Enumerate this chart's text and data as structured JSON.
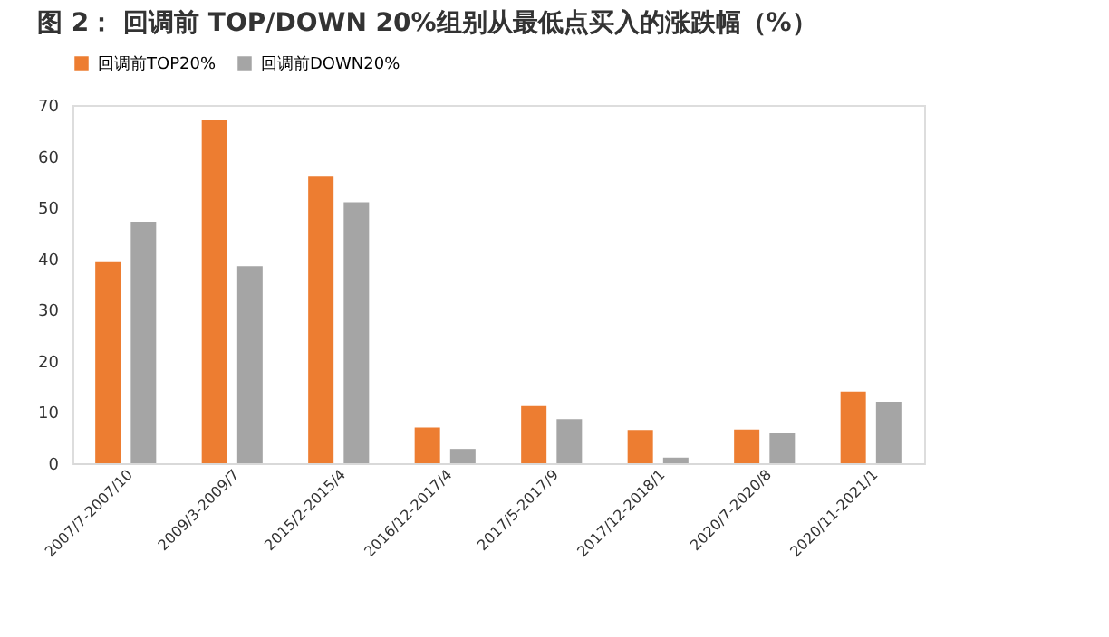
{
  "chart_data": {
    "type": "bar",
    "title": "图 2： 回调前 TOP/DOWN 20%组别从最低点买入的涨跌幅（%）",
    "categories": [
      "2007/7-2007/10",
      "2009/3-2009/7",
      "2015/2-2015/4",
      "2016/12-2017/4",
      "2017/5-2017/9",
      "2017/12-2018/1",
      "2020/7-2020/8",
      "2020/11-2021/1"
    ],
    "series": [
      {
        "name": "回调前TOP20%",
        "color": "#ed7d31",
        "values": [
          39.3,
          67,
          56,
          7,
          11.2,
          6.5,
          6.6,
          14
        ]
      },
      {
        "name": "回调前DOWN20%",
        "color": "#a5a5a5",
        "values": [
          47.2,
          38.5,
          51,
          2.8,
          8.6,
          1.1,
          5.9,
          12
        ]
      }
    ],
    "ylim": [
      0,
      70
    ],
    "yticks": [
      0,
      10,
      20,
      30,
      40,
      50,
      60,
      70
    ],
    "grid": false,
    "legend": "top"
  }
}
